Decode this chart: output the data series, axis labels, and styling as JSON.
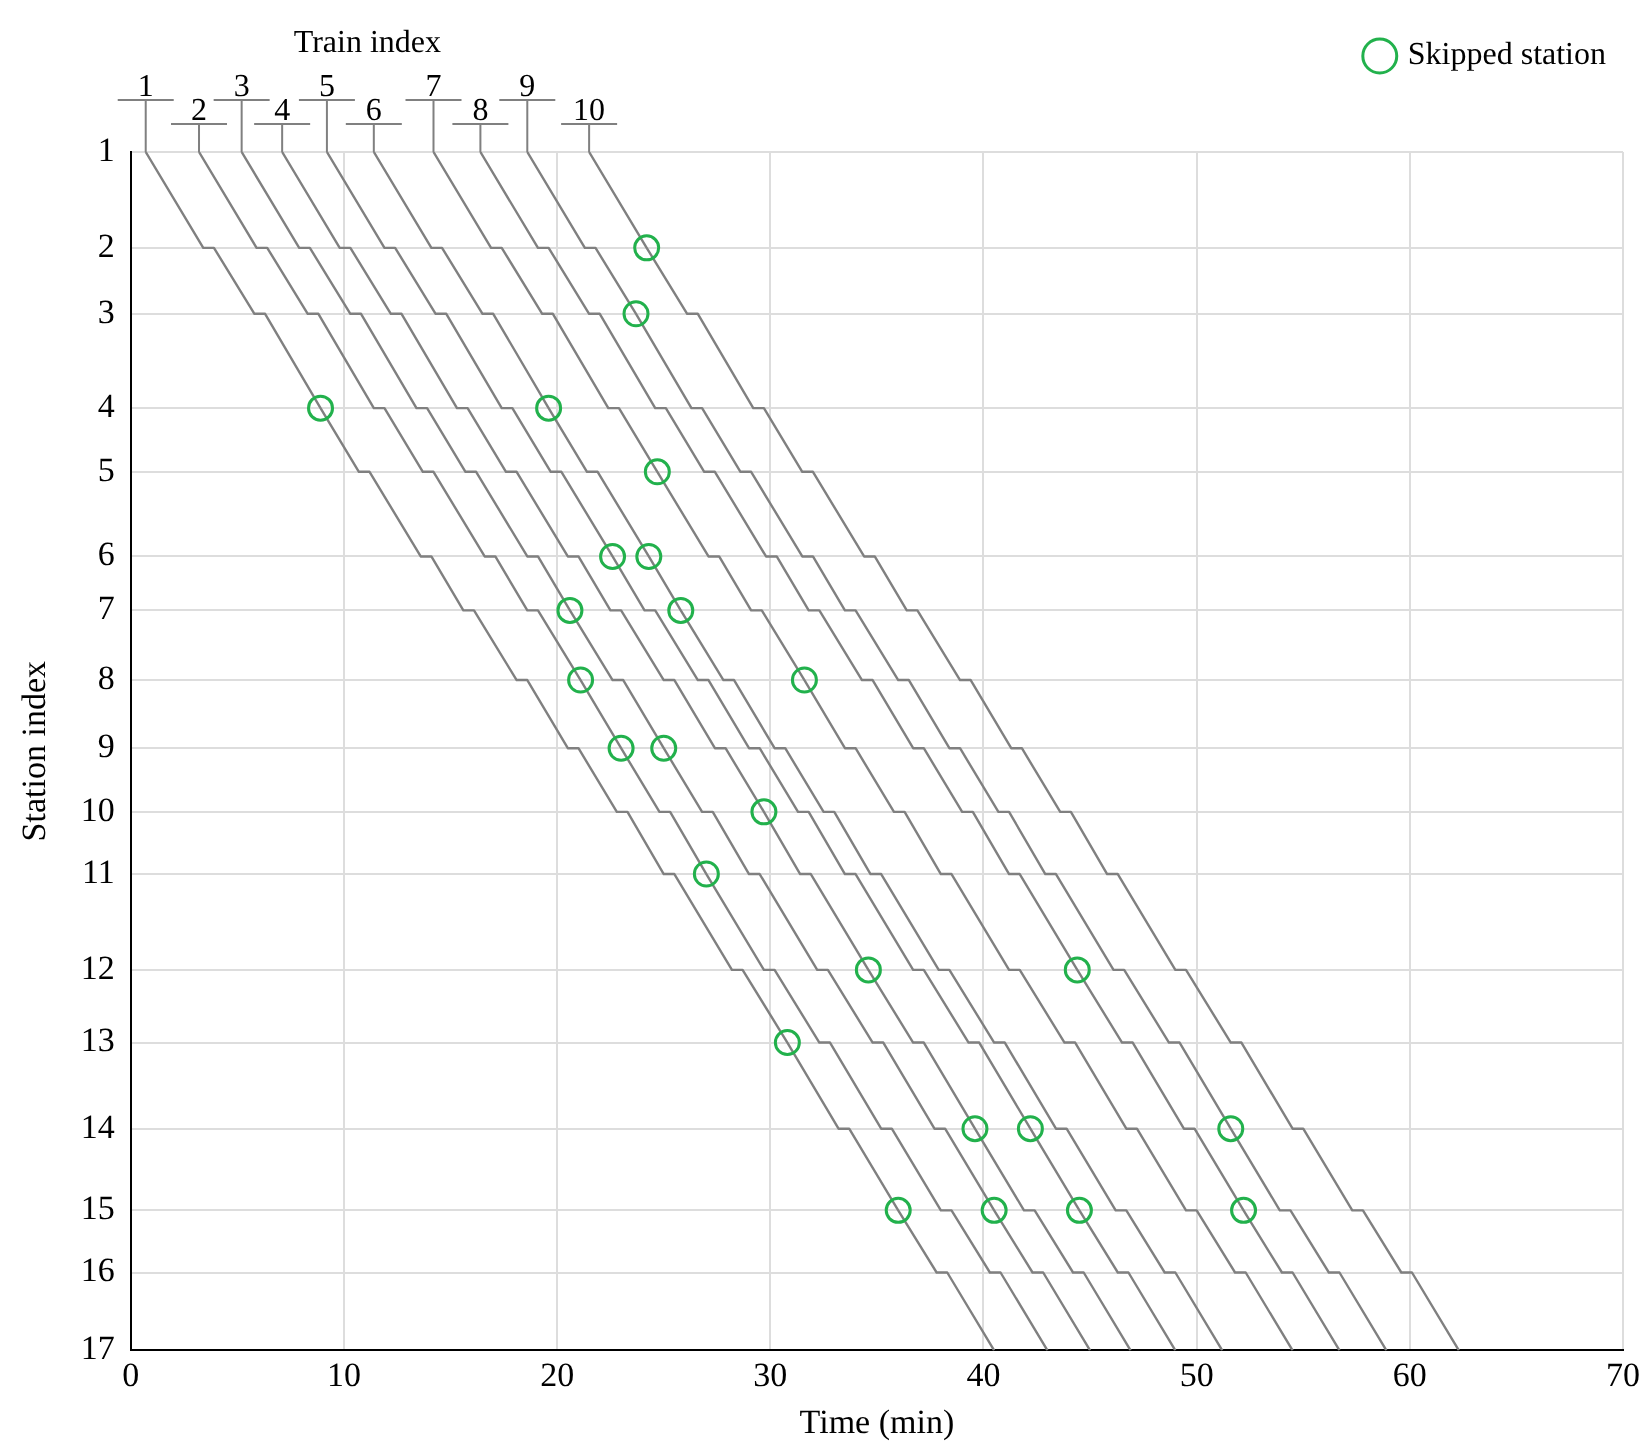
{
  "chart_data": {
    "type": "line",
    "xlabel": "Time (min)",
    "ylabel": "Station index",
    "annotations": [
      "Train index",
      {
        "text": "1",
        "x": 0.7,
        "y": 1
      },
      {
        "text": "2",
        "x": 3.2,
        "y": 1
      },
      {
        "text": "3",
        "x": 5.2,
        "y": 1
      },
      {
        "text": "4",
        "x": 7.1,
        "y": 1
      },
      {
        "text": "5",
        "x": 9.2,
        "y": 1
      },
      {
        "text": "6",
        "x": 11.4,
        "y": 1
      },
      {
        "text": "7",
        "x": 14.2,
        "y": 1
      },
      {
        "text": "8",
        "x": 16.4,
        "y": 1
      },
      {
        "text": "9",
        "x": 18.6,
        "y": 1
      },
      {
        "text": "10",
        "x": 21.5,
        "y": 1
      }
    ],
    "xlim": [
      0,
      70
    ],
    "xticks": [
      0,
      10,
      20,
      30,
      40,
      50,
      60,
      70
    ],
    "ylim": [
      17,
      1
    ],
    "yticks": [
      {
        "value": 1,
        "label": "1"
      },
      {
        "value": 2.28,
        "label": "2"
      },
      {
        "value": 3.16,
        "label": "3"
      },
      {
        "value": 4.42,
        "label": "4"
      },
      {
        "value": 5.27,
        "label": "5"
      },
      {
        "value": 6.4,
        "label": "6"
      },
      {
        "value": 7.12,
        "label": "7"
      },
      {
        "value": 8.05,
        "label": "8"
      },
      {
        "value": 8.96,
        "label": "9"
      },
      {
        "value": 9.81,
        "label": "10"
      },
      {
        "value": 10.64,
        "label": "11"
      },
      {
        "value": 11.92,
        "label": "12"
      },
      {
        "value": 12.89,
        "label": "13"
      },
      {
        "value": 14.04,
        "label": "14"
      },
      {
        "value": 15.13,
        "label": "15"
      },
      {
        "value": 15.96,
        "label": "16"
      },
      {
        "value": 17,
        "label": "17"
      }
    ],
    "grid": true,
    "legend": "top right",
    "line_style": "solid",
    "series": [
      {
        "type": "line",
        "color": "#808080",
        "marker": "none",
        "x": [
          0.7,
          3.4,
          3.9,
          5.8,
          6.3,
          8.9,
          10.7,
          11.2,
          13.6,
          14.1,
          15.6,
          16.1,
          18.1,
          18.6,
          20.5,
          21.0,
          22.8,
          23.3,
          25.0,
          25.5,
          28.2,
          28.7,
          30.8,
          33.2,
          33.7,
          36.0,
          37.8,
          38.3,
          40.5
        ],
        "values": [
          1,
          2.28,
          2.28,
          3.16,
          3.16,
          4.42,
          5.27,
          5.27,
          6.4,
          6.4,
          7.12,
          7.12,
          8.05,
          8.05,
          8.96,
          8.96,
          9.81,
          9.81,
          10.64,
          10.64,
          11.92,
          11.92,
          12.89,
          14.04,
          14.04,
          15.13,
          15.96,
          15.96,
          17
        ]
      },
      {
        "type": "line",
        "color": "#808080",
        "marker": "none",
        "x": [
          3.2,
          5.9,
          6.4,
          8.3,
          8.8,
          11.4,
          11.9,
          13.7,
          14.2,
          16.6,
          17.1,
          18.6,
          19.1,
          21.1,
          23.0,
          24.8,
          25.3,
          27.0,
          29.7,
          30.2,
          32.3,
          32.8,
          35.2,
          35.7,
          38.0,
          38.5,
          40.3,
          40.8,
          43.0
        ],
        "values": [
          1,
          2.28,
          2.28,
          3.16,
          3.16,
          4.42,
          4.42,
          5.27,
          5.27,
          6.4,
          6.4,
          7.12,
          7.12,
          8.05,
          8.96,
          9.81,
          9.81,
          10.64,
          11.92,
          11.92,
          12.89,
          12.89,
          14.04,
          14.04,
          15.13,
          15.13,
          15.96,
          15.96,
          17
        ]
      },
      {
        "type": "line",
        "color": "#808080",
        "marker": "none",
        "x": [
          5.2,
          7.9,
          8.4,
          10.3,
          10.8,
          13.4,
          13.9,
          15.7,
          16.2,
          18.6,
          19.1,
          20.6,
          22.6,
          23.1,
          25.0,
          26.8,
          27.3,
          29.0,
          29.5,
          32.2,
          32.7,
          34.8,
          35.3,
          37.7,
          38.2,
          40.5,
          42.3,
          42.8,
          45.0
        ],
        "values": [
          1,
          2.28,
          2.28,
          3.16,
          3.16,
          4.42,
          4.42,
          5.27,
          5.27,
          6.4,
          6.4,
          7.12,
          8.05,
          8.05,
          8.96,
          9.81,
          9.81,
          10.64,
          10.64,
          11.92,
          11.92,
          12.89,
          12.89,
          14.04,
          14.04,
          15.13,
          15.96,
          15.96,
          17
        ]
      },
      {
        "type": "line",
        "color": "#808080",
        "marker": "none",
        "x": [
          7.1,
          9.8,
          10.3,
          12.2,
          12.7,
          15.3,
          15.8,
          17.6,
          18.1,
          20.5,
          21.0,
          22.5,
          23.0,
          25.0,
          25.5,
          27.4,
          27.9,
          29.7,
          31.4,
          31.9,
          34.6,
          36.7,
          37.2,
          39.6,
          41.9,
          42.4,
          44.2,
          44.7,
          46.9
        ],
        "values": [
          1,
          2.28,
          2.28,
          3.16,
          3.16,
          4.42,
          4.42,
          5.27,
          5.27,
          6.4,
          6.4,
          7.12,
          7.12,
          8.05,
          8.05,
          8.96,
          8.96,
          9.81,
          10.64,
          10.64,
          11.92,
          12.89,
          12.89,
          14.04,
          15.13,
          15.13,
          15.96,
          15.96,
          17
        ]
      },
      {
        "type": "line",
        "color": "#808080",
        "marker": "none",
        "x": [
          9.2,
          11.9,
          12.4,
          14.3,
          14.8,
          17.4,
          17.9,
          19.7,
          20.2,
          22.6,
          24.1,
          24.6,
          26.6,
          27.1,
          29.0,
          29.5,
          31.3,
          31.8,
          33.5,
          34.0,
          36.7,
          37.2,
          39.3,
          39.8,
          42.2,
          44.5,
          46.3,
          46.8,
          49.0
        ],
        "values": [
          1,
          2.28,
          2.28,
          3.16,
          3.16,
          4.42,
          4.42,
          5.27,
          5.27,
          6.4,
          7.12,
          7.12,
          8.05,
          8.05,
          8.96,
          8.96,
          9.81,
          9.81,
          10.64,
          10.64,
          11.92,
          11.92,
          12.89,
          12.89,
          14.04,
          15.13,
          15.96,
          15.96,
          17
        ]
      },
      {
        "type": "line",
        "color": "#808080",
        "marker": "none",
        "x": [
          11.4,
          14.1,
          14.6,
          16.5,
          17.0,
          19.6,
          21.4,
          21.9,
          24.3,
          25.8,
          27.8,
          28.3,
          30.2,
          30.7,
          32.5,
          33.0,
          34.7,
          35.2,
          37.9,
          38.4,
          40.5,
          41.0,
          43.4,
          43.9,
          46.2,
          46.7,
          48.5,
          49.0,
          51.2
        ],
        "values": [
          1,
          2.28,
          2.28,
          3.16,
          3.16,
          4.42,
          5.27,
          5.27,
          6.4,
          7.12,
          8.05,
          8.05,
          8.96,
          8.96,
          9.81,
          9.81,
          10.64,
          10.64,
          11.92,
          11.92,
          12.89,
          12.89,
          14.04,
          14.04,
          15.13,
          15.13,
          15.96,
          15.96,
          17
        ]
      },
      {
        "type": "line",
        "color": "#808080",
        "marker": "none",
        "x": [
          14.2,
          16.9,
          17.4,
          19.3,
          19.8,
          22.4,
          22.9,
          24.7,
          27.1,
          27.6,
          29.1,
          29.6,
          31.6,
          33.5,
          34.0,
          35.8,
          36.3,
          38.0,
          38.5,
          41.2,
          41.7,
          43.8,
          44.3,
          46.7,
          47.2,
          49.5,
          50.0,
          51.8,
          52.3,
          54.5
        ],
        "values": [
          1,
          2.28,
          2.28,
          3.16,
          3.16,
          4.42,
          4.42,
          5.27,
          6.4,
          6.4,
          7.12,
          7.12,
          8.05,
          8.96,
          8.96,
          9.81,
          9.81,
          10.64,
          10.64,
          11.92,
          11.92,
          12.89,
          12.89,
          14.04,
          14.04,
          15.13,
          15.13,
          15.96,
          15.96,
          17
        ]
      },
      {
        "type": "line",
        "color": "#808080",
        "marker": "none",
        "x": [
          16.4,
          19.1,
          19.6,
          21.5,
          22.0,
          24.6,
          25.1,
          26.9,
          27.4,
          29.8,
          30.3,
          31.8,
          32.3,
          34.3,
          34.8,
          36.7,
          37.2,
          39.0,
          39.5,
          41.2,
          41.7,
          44.4,
          46.5,
          47.0,
          49.4,
          49.9,
          52.2,
          54.0,
          54.5,
          56.7
        ],
        "values": [
          1,
          2.28,
          2.28,
          3.16,
          3.16,
          4.42,
          4.42,
          5.27,
          5.27,
          6.4,
          6.4,
          7.12,
          7.12,
          8.05,
          8.05,
          8.96,
          8.96,
          9.81,
          9.81,
          10.64,
          10.64,
          11.92,
          12.89,
          12.89,
          14.04,
          14.04,
          15.13,
          15.96,
          15.96,
          17
        ]
      },
      {
        "type": "line",
        "color": "#808080",
        "marker": "none",
        "x": [
          18.6,
          21.3,
          21.8,
          23.7,
          26.3,
          26.8,
          28.6,
          29.1,
          31.5,
          32.0,
          33.5,
          34.0,
          36.0,
          36.5,
          38.4,
          38.9,
          40.7,
          41.2,
          42.9,
          43.4,
          46.1,
          46.6,
          48.7,
          49.2,
          51.6,
          53.9,
          54.4,
          56.2,
          56.7,
          58.9
        ],
        "values": [
          1,
          2.28,
          2.28,
          3.16,
          4.42,
          4.42,
          5.27,
          5.27,
          6.4,
          6.4,
          7.12,
          7.12,
          8.05,
          8.05,
          8.96,
          8.96,
          9.81,
          9.81,
          10.64,
          10.64,
          11.92,
          11.92,
          12.89,
          12.89,
          14.04,
          15.13,
          15.13,
          15.96,
          15.96,
          17
        ]
      },
      {
        "type": "line",
        "color": "#808080",
        "marker": "none",
        "x": [
          21.5,
          24.2,
          26.1,
          26.6,
          29.2,
          29.7,
          31.5,
          32.0,
          34.4,
          34.9,
          36.4,
          36.9,
          38.9,
          39.4,
          41.3,
          41.8,
          43.6,
          44.1,
          45.8,
          46.3,
          49.0,
          49.5,
          51.6,
          52.1,
          54.5,
          55.0,
          57.3,
          57.8,
          59.6,
          60.1,
          62.3
        ],
        "values": [
          1,
          2.28,
          3.16,
          3.16,
          4.42,
          4.42,
          5.27,
          5.27,
          6.4,
          6.4,
          7.12,
          7.12,
          8.05,
          8.05,
          8.96,
          8.96,
          9.81,
          9.81,
          10.64,
          10.64,
          11.92,
          11.92,
          12.89,
          12.89,
          14.04,
          14.04,
          15.13,
          15.13,
          15.96,
          15.96,
          17
        ]
      },
      {
        "type": "scatter",
        "name": "Skipped station",
        "color": "#22b14c",
        "marker": "circle",
        "x": [
          8.9,
          30.8,
          36.0,
          21.1,
          23.0,
          27.0,
          20.6,
          25.0,
          40.5,
          29.7,
          34.6,
          39.6,
          22.6,
          42.2,
          44.5,
          19.6,
          24.3,
          25.8,
          24.7,
          31.6,
          44.4,
          52.2,
          23.7,
          51.6,
          24.2
        ],
        "values": [
          4.42,
          12.89,
          15.13,
          8.05,
          8.96,
          10.64,
          7.12,
          8.96,
          15.13,
          9.81,
          11.92,
          14.04,
          6.4,
          14.04,
          15.13,
          4.42,
          6.4,
          7.12,
          5.27,
          8.05,
          11.92,
          15.13,
          3.16,
          14.04,
          2.28
        ]
      }
    ]
  }
}
